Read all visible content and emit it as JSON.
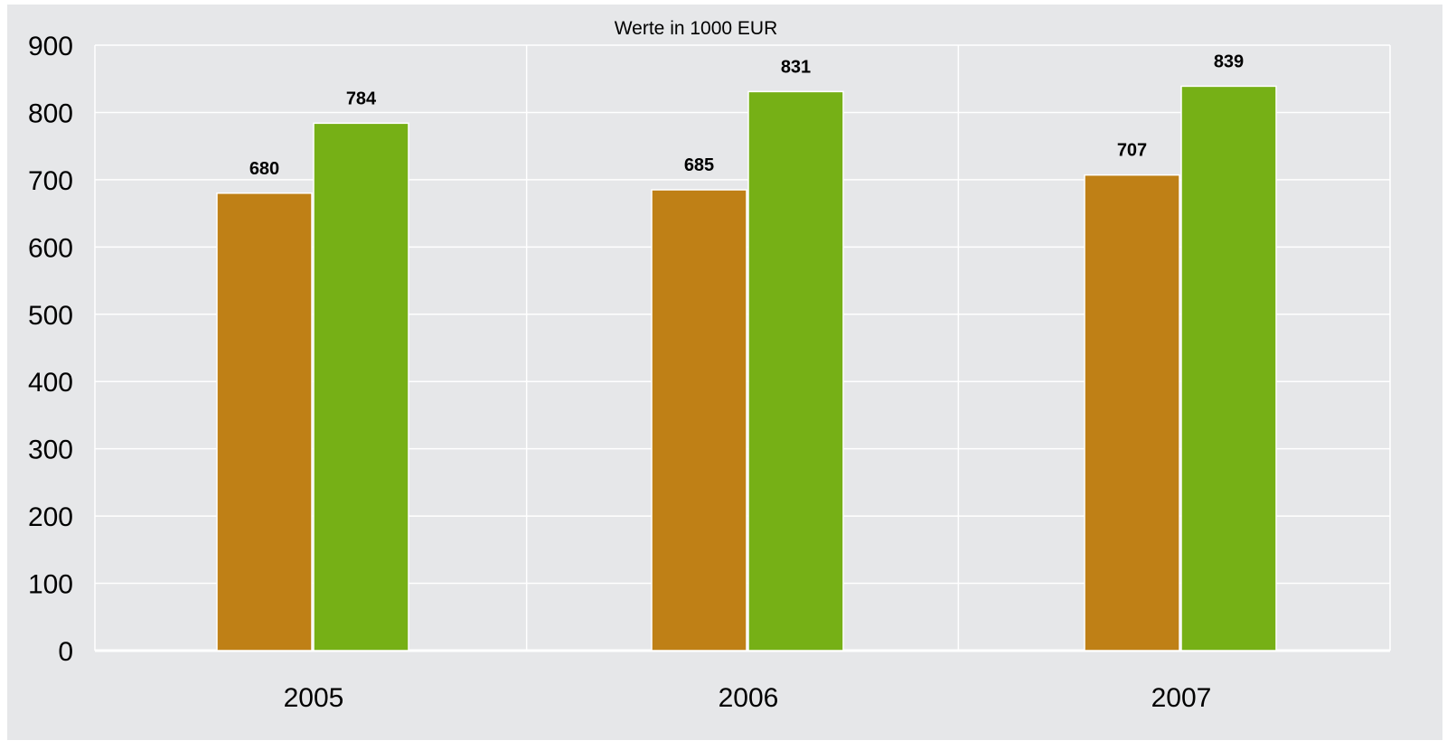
{
  "chart_data": {
    "type": "bar",
    "subtitle": "Werte in 1000 EUR",
    "categories": [
      "2005",
      "2006",
      "2007"
    ],
    "series": [
      {
        "values": [
          680,
          685,
          707
        ],
        "color": "#bf8016"
      },
      {
        "values": [
          784,
          831,
          839
        ],
        "color": "#76b016"
      }
    ],
    "ylim": [
      0,
      900
    ],
    "yticks": [
      0,
      100,
      200,
      300,
      400,
      500,
      600,
      700,
      800,
      900
    ],
    "grid": true,
    "legend": "none",
    "background": "#e6e7e9",
    "grid_color": "#ffffff"
  }
}
